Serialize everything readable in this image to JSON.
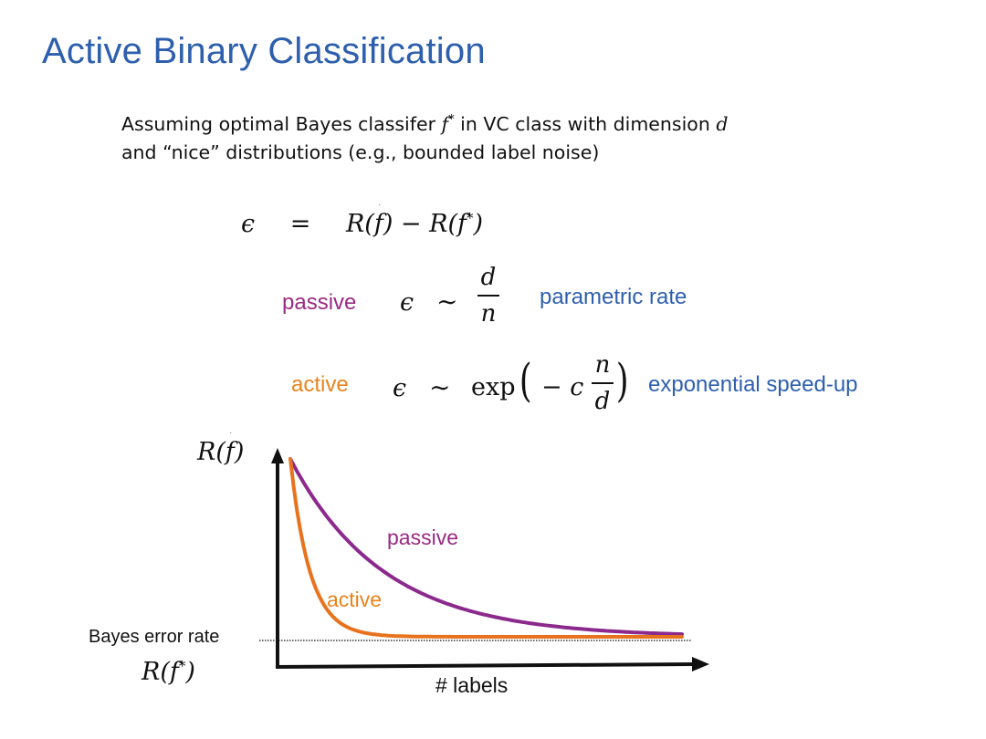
{
  "slide": {
    "title": "Active Binary Classification",
    "intro": {
      "line1_pre": "Assuming optimal Bayes classifer ",
      "line1_f": "f",
      "line1_star": "*",
      "line1_mid": " in VC class with dimension ",
      "line1_d": "d",
      "line2": "and “nice” distributions (e.g., bounded label noise)"
    },
    "excess_risk": {
      "eps": "ϵ",
      "eq": "=",
      "rhs_1": "R(",
      "f_hat": "f",
      "rhs_2": ") − R(",
      "rhs_3": "f",
      "rhs_star": "*",
      "rhs_4": ")"
    },
    "passive_rate": {
      "label": "passive",
      "eps": "ϵ",
      "sim": "∼",
      "num": "d",
      "den": "n",
      "note": "parametric rate"
    },
    "active_rate": {
      "label": "active",
      "eps": "ϵ",
      "sim": "∼",
      "exp": "exp",
      "lparen": "(",
      "minus_c": "− c",
      "num": "n",
      "den": "d",
      "rparen": ")",
      "note": "exponential speed-up"
    },
    "plot": {
      "y_label_1": "R(",
      "y_label_f": "f",
      "y_label_2": ")",
      "x_label": "# labels",
      "bayes_label": "Bayes error rate",
      "bayes_math_1": "R(",
      "bayes_math_f": "f",
      "bayes_math_star": "*",
      "bayes_math_2": ")",
      "passive_curve_label": "passive",
      "active_curve_label": "active",
      "colors": {
        "passive": "#8b2a8c",
        "active": "#e8731f",
        "axis": "#111111"
      }
    }
  }
}
